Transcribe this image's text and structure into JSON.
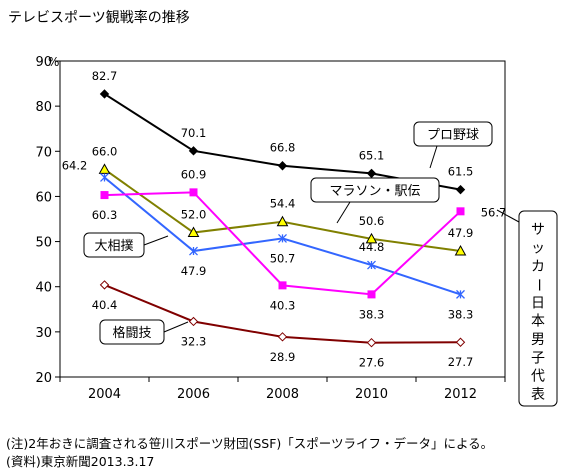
{
  "chart_data": {
    "type": "line",
    "title": "テレビスポーツ観戦率の推移",
    "ylabel": "%",
    "ylim": [
      20,
      90
    ],
    "yticks": [
      20,
      30,
      40,
      50,
      60,
      70,
      80,
      90
    ],
    "x": [
      "2004",
      "2006",
      "2008",
      "2010",
      "2012"
    ],
    "grid": false,
    "series": [
      {
        "name": "プロ野球",
        "color": "#000000",
        "marker": "diamond-filled",
        "values": [
          82.7,
          70.1,
          66.8,
          65.1,
          61.5
        ],
        "labels": [
          "82.7",
          "70.1",
          "66.8",
          "65.1",
          "61.5"
        ]
      },
      {
        "name": "マラソン・駅伝",
        "color": "#808000",
        "marker": "triangle",
        "values": [
          66.0,
          52.0,
          54.4,
          50.6,
          47.9
        ],
        "labels": [
          "66.0",
          "52.0",
          "54.4",
          "50.6",
          "47.9"
        ]
      },
      {
        "name": "大相撲",
        "color": "#3366ff",
        "marker": "star",
        "values": [
          64.2,
          47.9,
          50.7,
          44.8,
          38.3
        ],
        "labels": [
          "64.2",
          "47.9",
          "50.7",
          "44.8",
          "38.3"
        ]
      },
      {
        "name": "サッカー日本男子代表",
        "color": "#ff00ff",
        "marker": "square",
        "values": [
          60.3,
          60.9,
          40.3,
          38.3,
          56.7
        ],
        "labels": [
          "60.3",
          "60.9",
          "40.3",
          "38.3",
          "56.7"
        ]
      },
      {
        "name": "格闘技",
        "color": "#800000",
        "marker": "diamond-open",
        "values": [
          40.4,
          32.3,
          28.9,
          27.6,
          27.7
        ],
        "labels": [
          "40.4",
          "32.3",
          "28.9",
          "27.6",
          "27.7"
        ]
      }
    ]
  },
  "footnotes": {
    "note": "(注)2年おきに調査される笹川スポーツ財団(SSF)「スポーツライフ・データ」による。",
    "source": "(資料)東京新聞2013.3.17"
  }
}
